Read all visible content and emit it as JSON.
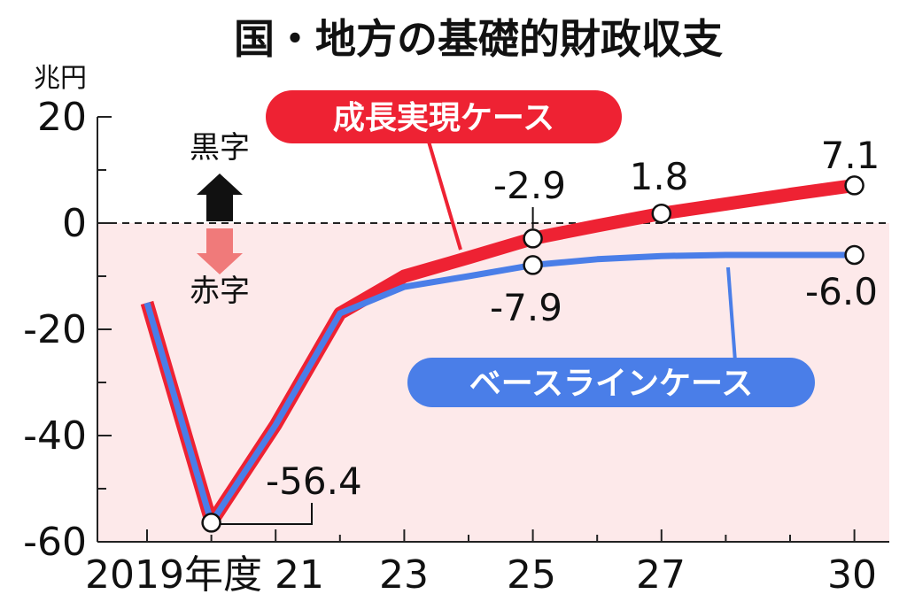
{
  "colors": {
    "growth": "#ee2233",
    "baseline": "#4a7ee8",
    "deficit_bg": "#fde9ea",
    "surplus_arrow": "#111111",
    "deficit_arrow": "#f07a7a"
  },
  "chart_data": {
    "type": "line",
    "title": "国・地方の基礎的財政収支",
    "ylabel": "兆円",
    "ylim": [
      -60,
      20
    ],
    "yticks": [
      20,
      0,
      -20,
      -40,
      -60
    ],
    "ytick_labels": [
      "20",
      "0",
      "-20",
      "-40",
      "-60"
    ],
    "xlim": [
      2019,
      2031
    ],
    "xtick_labels": [
      {
        "x": 2020,
        "label": "2019年度 21"
      },
      {
        "x": 2023,
        "label": "23"
      },
      {
        "x": 2025,
        "label": "25"
      },
      {
        "x": 2027,
        "label": "27"
      },
      {
        "x": 2030,
        "label": "30"
      }
    ],
    "surplus_label": "黒字",
    "deficit_label": "赤字",
    "series": [
      {
        "name": "成長実現ケース",
        "x": [
          2019,
          2020,
          2021,
          2022,
          2023,
          2024,
          2025,
          2026,
          2027,
          2028,
          2029,
          2030
        ],
        "y": [
          -15,
          -56.4,
          -38,
          -17,
          -10,
          -6.5,
          -2.9,
          -0.5,
          1.8,
          3.6,
          5.4,
          7.1
        ]
      },
      {
        "name": "ベースラインケース",
        "x": [
          2019,
          2020,
          2021,
          2022,
          2023,
          2024,
          2025,
          2026,
          2027,
          2028,
          2029,
          2030
        ],
        "y": [
          -15,
          -56.4,
          -38,
          -17,
          -12,
          -10,
          -7.9,
          -6.8,
          -6.2,
          -6.0,
          -6.0,
          -6.0
        ]
      }
    ],
    "annotations": [
      {
        "label": "-56.4",
        "x": 2020,
        "y": -56.4
      },
      {
        "label": "-2.9",
        "x": 2025,
        "y": -2.9
      },
      {
        "label": "-7.9",
        "x": 2025,
        "y": -7.9
      },
      {
        "label": "1.8",
        "x": 2027,
        "y": 1.8
      },
      {
        "label": "7.1",
        "x": 2030,
        "y": 7.1
      },
      {
        "label": "-6.0",
        "x": 2030,
        "y": -6.0
      }
    ]
  }
}
